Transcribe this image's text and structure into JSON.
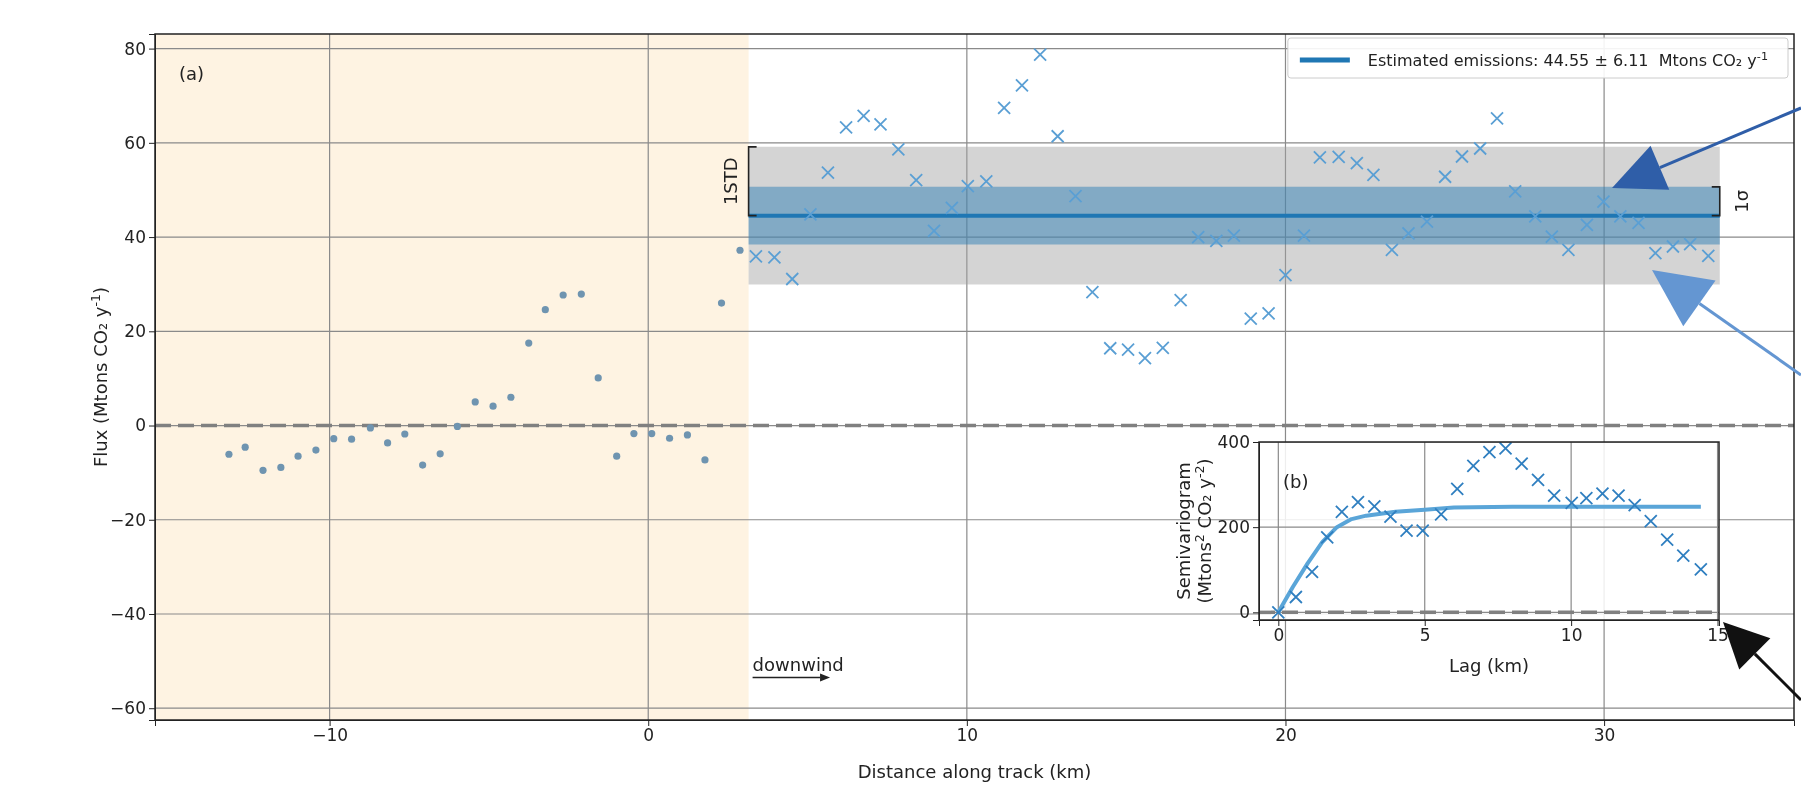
{
  "chart_data": [
    {
      "type": "scatter",
      "xlabel": "Distance along track (km)",
      "ylabel": "Flux (Mtons CO₂ y$^{-1}$)",
      "xlim": [
        -15.48,
        35.96
      ],
      "ylim": [
        -62.5,
        83.1
      ],
      "xticks": [
        {
          "value": -10,
          "label": "−10"
        },
        0,
        10,
        20,
        30
      ],
      "yticks": [
        {
          "value": -60,
          "label": "−60"
        },
        {
          "value": -40,
          "label": "−40"
        },
        {
          "value": -20,
          "label": "−20"
        },
        0,
        20,
        40,
        60,
        80
      ],
      "grid": true,
      "legend": "top right",
      "bands": [
        {
          "axis": "x",
          "from": -15.48,
          "to": 3.15,
          "color": "#fef3e2"
        }
      ],
      "ref_lines": [
        {
          "axis": "y",
          "value": 0,
          "color": "#808080",
          "line_style": "dashed"
        }
      ],
      "annotations": [
        "(a)",
        "1STD",
        "1σ",
        {
          "text": "downwind",
          "x": 3.15,
          "y": -52
        }
      ],
      "series": [
        {
          "type": "line",
          "color": "#a0a0a0",
          "x": [
            3.15,
            33.63
          ],
          "values": [
            null,
            null
          ],
          "lower": [
            29.95,
            29.95
          ],
          "upper": [
            59.15,
            59.15
          ]
        },
        {
          "type": "line",
          "name": "Estimated emissions: 44.55 ± 6.11  Mtons CO₂ y$^{-1}$",
          "color": "#1f77b4",
          "x": [
            3.15,
            33.63
          ],
          "values": [
            44.55,
            44.55
          ],
          "lower": [
            38.44,
            38.44
          ],
          "upper": [
            50.66,
            50.66
          ],
          "line_style": "solid"
        },
        {
          "color": "#6f94b0",
          "marker": "circle",
          "x": [
            -13.16,
            -12.65,
            -12.09,
            -11.53,
            -10.99,
            -10.43,
            -9.87,
            -9.31,
            -8.72,
            -8.18,
            -7.64,
            -7.08,
            -6.53,
            -5.99,
            -5.43,
            -4.87,
            -4.31,
            -3.75,
            -3.23,
            -2.67,
            -2.1,
            -1.57,
            -0.99,
            -0.45,
            0.11,
            0.67,
            1.23,
            1.78,
            2.3,
            2.88
          ],
          "values": [
            -6.1,
            -4.6,
            -9.5,
            -8.9,
            -6.5,
            -5.2,
            -2.8,
            -2.9,
            -0.5,
            -3.7,
            -1.8,
            -8.4,
            -6.0,
            -0.2,
            5.0,
            4.1,
            6.0,
            17.5,
            24.6,
            27.7,
            27.9,
            10.1,
            -6.5,
            -1.7,
            -1.7,
            -2.7,
            -2.0,
            -7.3,
            26.0,
            37.2
          ]
        },
        {
          "color": "#5a9fd4",
          "marker": "cross",
          "x": [
            3.38,
            3.96,
            4.52,
            5.09,
            5.64,
            6.21,
            6.76,
            7.29,
            7.85,
            8.41,
            8.97,
            9.53,
            10.03,
            10.61,
            11.17,
            11.73,
            12.3,
            12.85,
            13.41,
            13.94,
            14.5,
            15.06,
            15.59,
            16.15,
            16.71,
            17.26,
            17.83,
            18.38,
            18.91,
            19.47,
            20.0,
            20.58,
            21.08,
            21.67,
            22.24,
            22.76,
            23.34,
            23.86,
            24.44,
            25.01,
            25.54,
            26.11,
            26.64,
            27.21,
            27.84,
            28.36,
            28.88,
            29.46,
            29.98,
            30.51,
            31.08,
            31.61,
            32.16,
            32.7,
            33.27
          ],
          "values": [
            35.9,
            35.7,
            31.1,
            44.8,
            53.7,
            63.3,
            65.7,
            63.9,
            58.6,
            52.1,
            41.3,
            46.2,
            50.8,
            51.8,
            67.4,
            72.2,
            78.7,
            61.4,
            48.7,
            28.3,
            16.4,
            16.1,
            14.3,
            16.5,
            26.6,
            40.0,
            39.2,
            40.3,
            22.7,
            23.8,
            31.9,
            40.3,
            56.9,
            57.0,
            55.7,
            53.2,
            37.3,
            40.8,
            43.3,
            52.8,
            57.1,
            58.8,
            65.2,
            49.7,
            44.4,
            40.1,
            37.3,
            42.6,
            47.5,
            44.4,
            43.0,
            36.6,
            38.0,
            38.5,
            36.0
          ]
        }
      ]
    },
    {
      "type": "scatter",
      "xlabel": "Lag (km)",
      "ylabel": "Semivariogram\n(Mtons$^{2}$ CO₂ y$^{-2}$)",
      "xlim": [
        -0.66,
        15.05
      ],
      "ylim": [
        -18,
        400
      ],
      "xticks": [
        0,
        5,
        10,
        15
      ],
      "yticks": [
        0,
        200,
        400
      ],
      "grid": true,
      "ref_lines": [
        {
          "axis": "y",
          "value": 0,
          "color": "#808080",
          "line_style": "dashed"
        }
      ],
      "annotations": [
        "(b)"
      ],
      "series": [
        {
          "type": "line",
          "color": "#5aa5d8",
          "line_style": "solid",
          "x": [
            0,
            0.5,
            1,
            1.5,
            2,
            2.5,
            3,
            4,
            5,
            6,
            8,
            14.43
          ],
          "values": [
            0,
            60,
            115,
            165,
            200,
            219,
            227,
            236,
            241,
            246,
            248,
            248
          ]
        },
        {
          "color": "#2f7fc0",
          "marker": "cross",
          "x": [
            0,
            0.6,
            1.15,
            1.67,
            2.17,
            2.72,
            3.28,
            3.83,
            4.38,
            4.93,
            5.56,
            6.11,
            6.66,
            7.21,
            7.76,
            8.31,
            8.87,
            9.42,
            10.02,
            10.52,
            11.07,
            11.62,
            12.17,
            12.72,
            13.28,
            13.83,
            14.43
          ],
          "values": [
            0,
            36,
            95,
            176,
            236,
            259,
            249,
            225,
            192,
            192,
            230,
            290,
            344,
            376,
            385,
            349,
            311,
            274,
            257,
            268,
            279,
            274,
            252,
            214,
            171,
            133,
            101
          ]
        }
      ]
    }
  ]
}
